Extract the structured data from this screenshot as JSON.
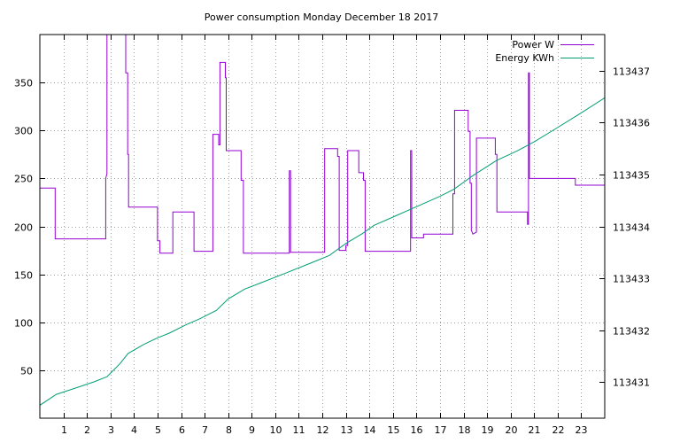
{
  "chart_data": {
    "type": "line",
    "title": "Power consumption Monday December 18 2017",
    "xlabel": "",
    "ylabel": "",
    "y2label": "",
    "xlim": [
      0,
      24
    ],
    "ylim": [
      0,
      400
    ],
    "y2lim": [
      113430.3,
      113437.7
    ],
    "x_ticks": [
      1,
      2,
      3,
      4,
      5,
      6,
      7,
      8,
      9,
      10,
      11,
      12,
      13,
      14,
      15,
      16,
      17,
      18,
      19,
      20,
      21,
      22,
      23
    ],
    "y_ticks": [
      50,
      100,
      150,
      200,
      250,
      300,
      350
    ],
    "y2_ticks": [
      113431,
      113432,
      113433,
      113434,
      113435,
      113436,
      113437
    ],
    "grid": true,
    "legend_position": "top-right",
    "series": [
      {
        "name": "Power W",
        "axis": "y",
        "color": "#9400d3",
        "points": [
          [
            0,
            240
          ],
          [
            0.65,
            240
          ],
          [
            0.65,
            187
          ],
          [
            2.8,
            187
          ],
          [
            2.8,
            250
          ],
          [
            2.85,
            255
          ],
          [
            2.85,
            400
          ],
          [
            3.65,
            400
          ],
          [
            3.65,
            360
          ],
          [
            3.73,
            360
          ],
          [
            3.73,
            275
          ],
          [
            3.77,
            275
          ],
          [
            3.77,
            220
          ],
          [
            5.0,
            220
          ],
          [
            5.0,
            185
          ],
          [
            5.1,
            185
          ],
          [
            5.1,
            172
          ],
          [
            5.65,
            172
          ],
          [
            5.65,
            215
          ],
          [
            6.55,
            215
          ],
          [
            6.55,
            174
          ],
          [
            7.35,
            174
          ],
          [
            7.35,
            296
          ],
          [
            7.6,
            296
          ],
          [
            7.6,
            285
          ],
          [
            7.65,
            285
          ],
          [
            7.65,
            371
          ],
          [
            7.88,
            371
          ],
          [
            7.88,
            355
          ],
          [
            7.92,
            355
          ],
          [
            7.92,
            279
          ],
          [
            8.55,
            279
          ],
          [
            8.55,
            248
          ],
          [
            8.65,
            248
          ],
          [
            8.65,
            172
          ],
          [
            10.6,
            172
          ],
          [
            10.6,
            258
          ],
          [
            10.65,
            258
          ],
          [
            10.65,
            173
          ],
          [
            12.1,
            173
          ],
          [
            12.1,
            281
          ],
          [
            12.65,
            281
          ],
          [
            12.65,
            273
          ],
          [
            12.72,
            273
          ],
          [
            12.72,
            175
          ],
          [
            13.0,
            175
          ],
          [
            13.0,
            180
          ],
          [
            13.08,
            180
          ],
          [
            13.08,
            279
          ],
          [
            13.55,
            279
          ],
          [
            13.55,
            256
          ],
          [
            13.75,
            256
          ],
          [
            13.75,
            248
          ],
          [
            13.82,
            248
          ],
          [
            13.82,
            174
          ],
          [
            15.75,
            174
          ],
          [
            15.75,
            279
          ],
          [
            15.8,
            279
          ],
          [
            15.8,
            188
          ],
          [
            16.3,
            188
          ],
          [
            16.3,
            192
          ],
          [
            17.55,
            192
          ],
          [
            17.55,
            234
          ],
          [
            17.62,
            234
          ],
          [
            17.62,
            321
          ],
          [
            18.2,
            321
          ],
          [
            18.2,
            299
          ],
          [
            18.28,
            299
          ],
          [
            18.28,
            245
          ],
          [
            18.33,
            245
          ],
          [
            18.33,
            196
          ],
          [
            18.4,
            192
          ],
          [
            18.55,
            194
          ],
          [
            18.55,
            292
          ],
          [
            19.35,
            292
          ],
          [
            19.35,
            275
          ],
          [
            19.42,
            275
          ],
          [
            19.42,
            215
          ],
          [
            20.72,
            215
          ],
          [
            20.72,
            202
          ],
          [
            20.76,
            202
          ],
          [
            20.76,
            360
          ],
          [
            20.8,
            360
          ],
          [
            20.8,
            250
          ],
          [
            22.75,
            250
          ],
          [
            22.75,
            243
          ],
          [
            24,
            243
          ]
        ]
      },
      {
        "name": "Energy KWh",
        "axis": "y2",
        "color": "#009e73",
        "points": [
          [
            0,
            113430.55
          ],
          [
            0.7,
            113430.76
          ],
          [
            1.5,
            113430.88
          ],
          [
            2.3,
            113431.0
          ],
          [
            2.85,
            113431.1
          ],
          [
            3.4,
            113431.35
          ],
          [
            3.75,
            113431.55
          ],
          [
            4.4,
            113431.72
          ],
          [
            5.0,
            113431.85
          ],
          [
            5.5,
            113431.94
          ],
          [
            6.2,
            113432.1
          ],
          [
            6.8,
            113432.22
          ],
          [
            7.5,
            113432.38
          ],
          [
            8.0,
            113432.6
          ],
          [
            8.7,
            113432.79
          ],
          [
            9.5,
            113432.93
          ],
          [
            10.4,
            113433.09
          ],
          [
            11.5,
            113433.29
          ],
          [
            12.3,
            113433.44
          ],
          [
            13.0,
            113433.67
          ],
          [
            13.7,
            113433.86
          ],
          [
            14.2,
            113434.02
          ],
          [
            15.0,
            113434.18
          ],
          [
            16.0,
            113434.38
          ],
          [
            17.0,
            113434.58
          ],
          [
            17.6,
            113434.72
          ],
          [
            18.4,
            113434.98
          ],
          [
            19.4,
            113435.27
          ],
          [
            20.3,
            113435.46
          ],
          [
            21.0,
            113435.63
          ],
          [
            21.9,
            113435.88
          ],
          [
            22.9,
            113436.16
          ],
          [
            24,
            113436.48
          ]
        ]
      }
    ]
  }
}
